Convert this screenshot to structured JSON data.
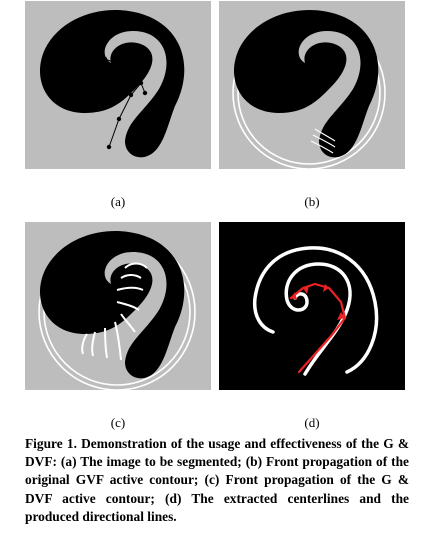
{
  "figure": {
    "panels": [
      {
        "id": "a",
        "label": "(a)"
      },
      {
        "id": "b",
        "label": "(b)"
      },
      {
        "id": "c",
        "label": "(c)"
      },
      {
        "id": "d",
        "label": "(d)"
      }
    ],
    "caption": "Figure 1. Demonstration of the usage and effectiveness of the G & DVF: (a) The image to be segmented; (b) Front propagation of the original GVF active contour; (c) Front propagation of the G & DVF active contour; (d) The extracted centerlines and the produced directional lines."
  }
}
